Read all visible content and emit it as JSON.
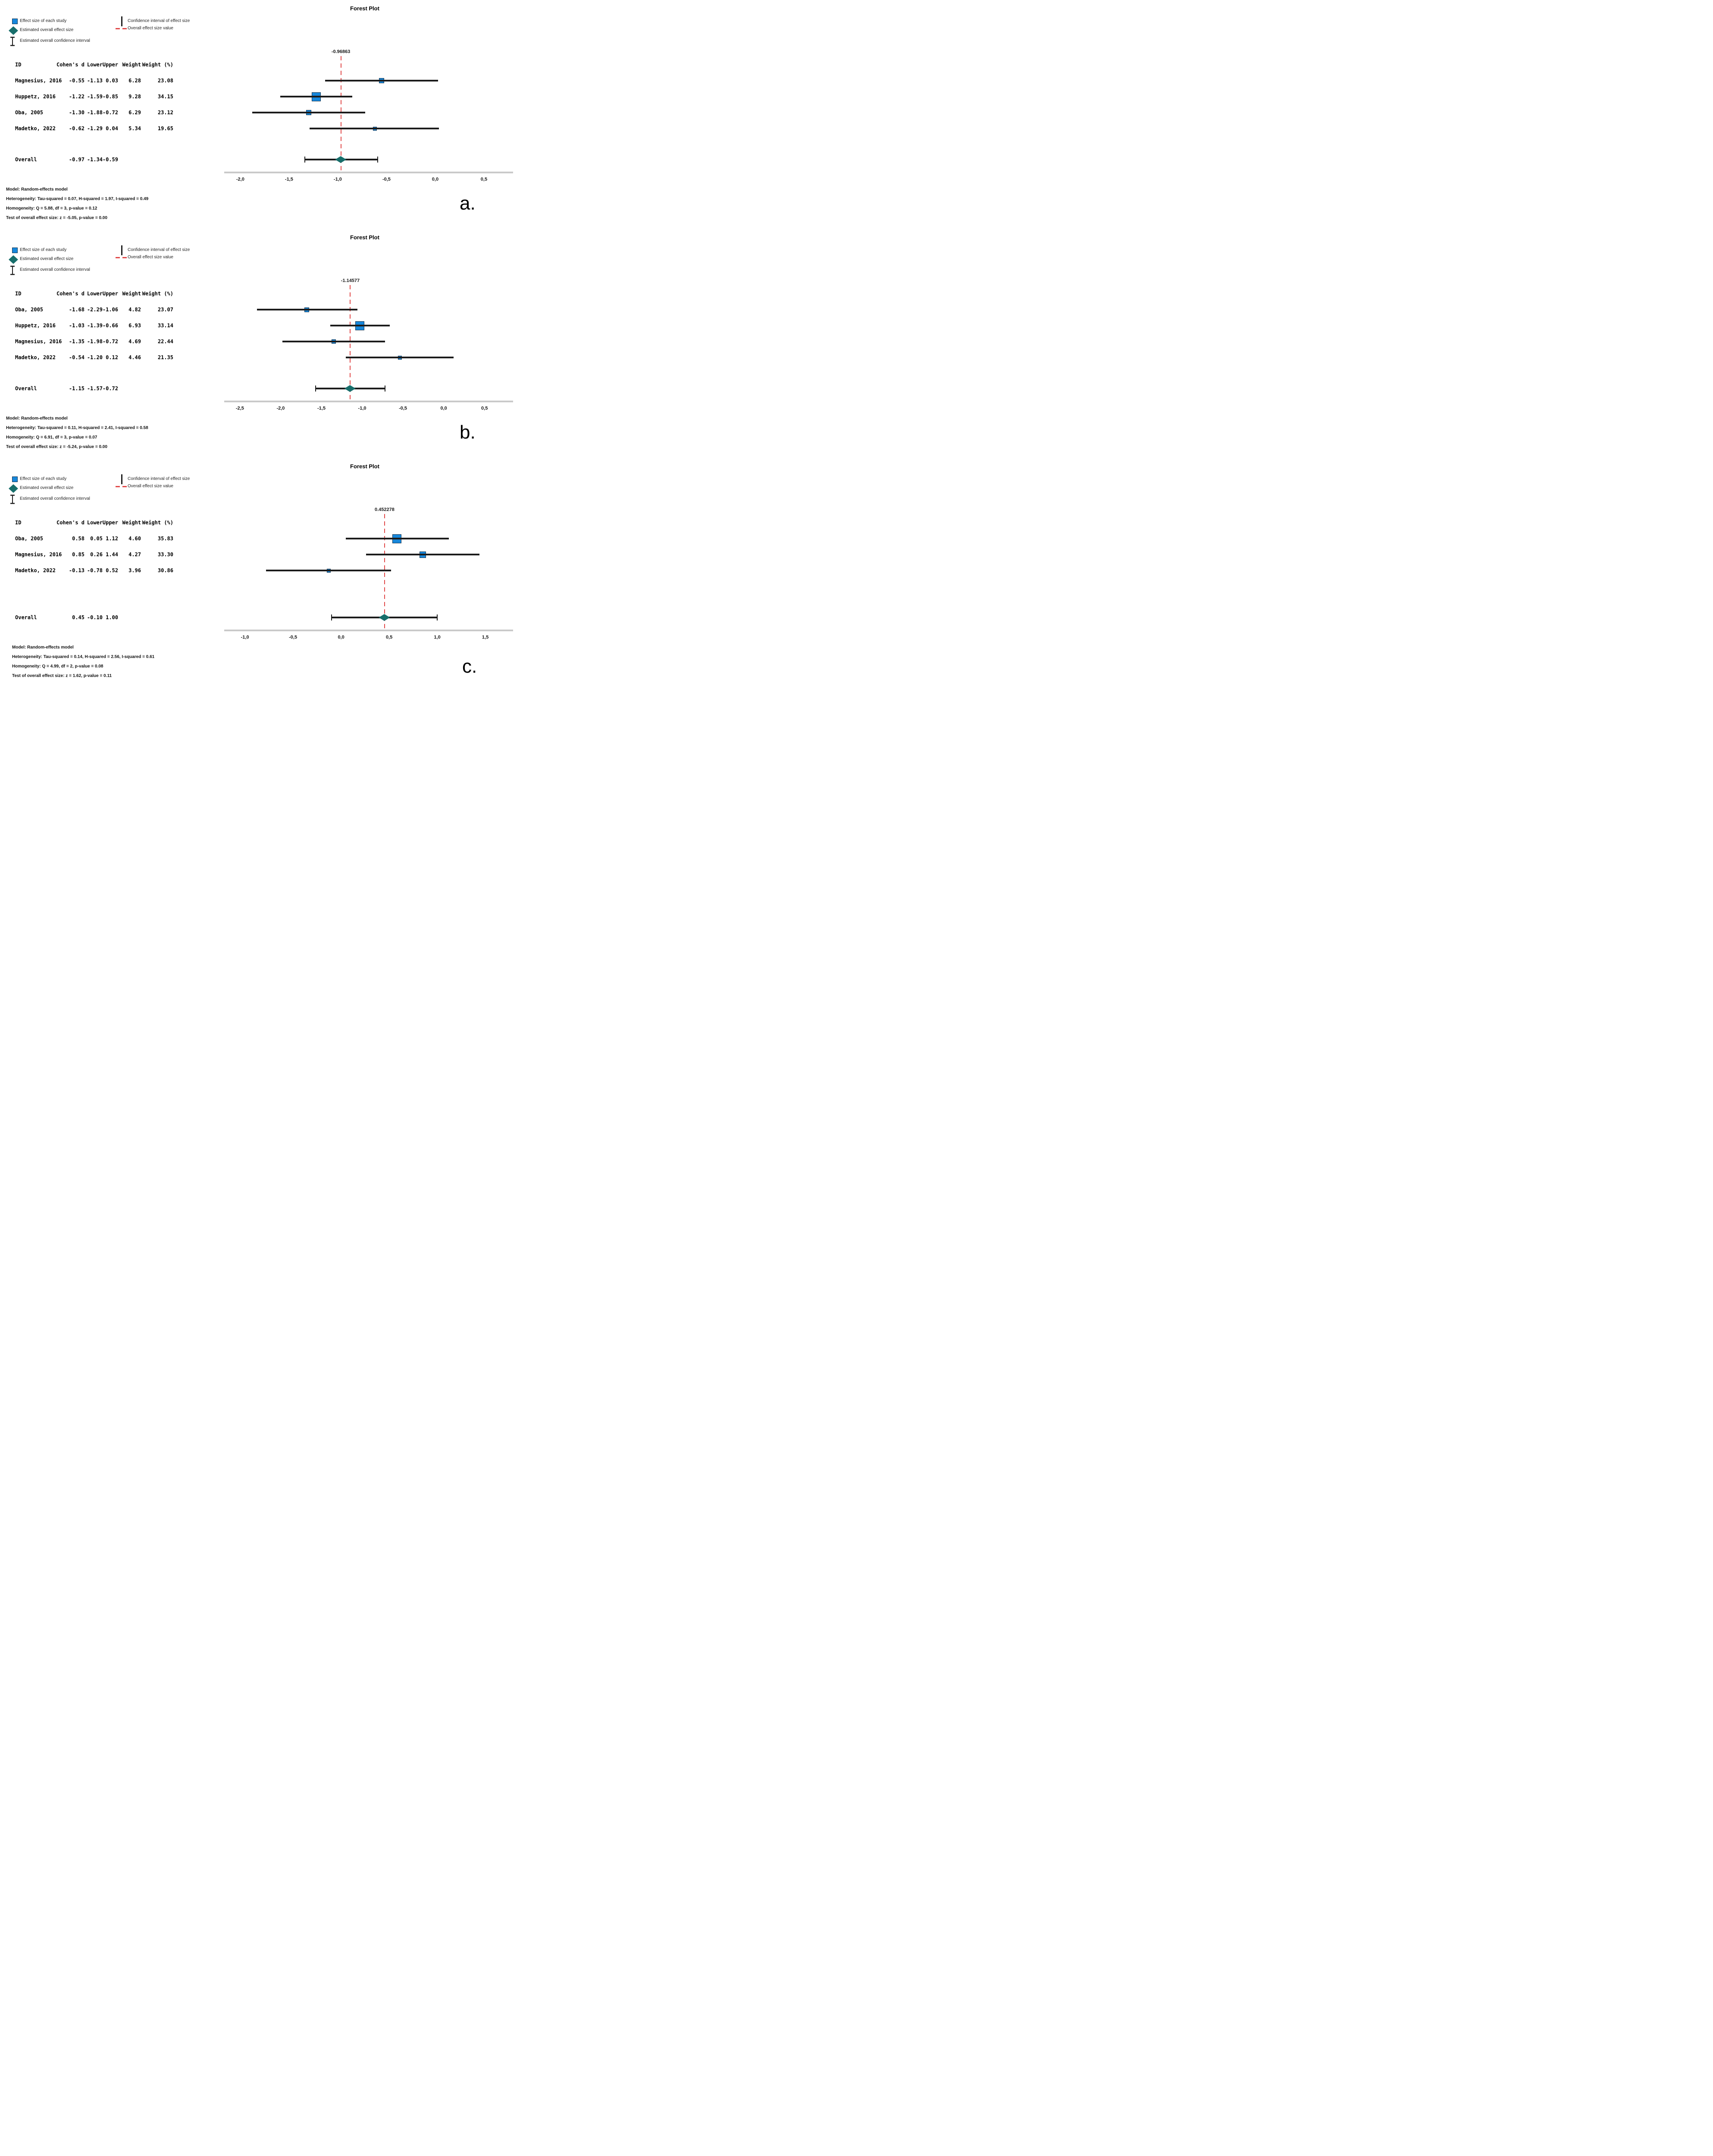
{
  "figure_title": "Forest Plot",
  "colors": {
    "study_marker_fill": "#1787DB",
    "study_marker_border": "#16324A",
    "overall_diamond": "#186E6B",
    "overall_value_line": "#E14A4A",
    "ci_line": "#1C1C1C",
    "axis_line": "#C9C9C9",
    "text": "#000000"
  },
  "legend": {
    "items_left": [
      {
        "icon": "effect-size-square-icon",
        "label": "Effect size of each study"
      },
      {
        "icon": "overall-diamond-icon",
        "label": "Estimated overall effect size"
      },
      {
        "icon": "overall-ci-ibeam-icon",
        "label": "Estimated overall confidence interval"
      }
    ],
    "items_right": [
      {
        "icon": "ci-vertical-line-icon",
        "label": "Confidence interval of effect size"
      },
      {
        "icon": "overall-value-dash-icon",
        "label": "Overall effect size value"
      }
    ]
  },
  "table_headers": [
    "ID",
    "Cohen's d",
    "Lower",
    "Upper",
    "Weight",
    "Weight (%)"
  ],
  "chart_data": [
    {
      "panel": "a.",
      "type": "forest",
      "title": "Forest Plot",
      "xlabel": "",
      "grid": false,
      "overall_effect_label": "-0.96863",
      "overall_effect_value": -0.96863,
      "xlim": [
        -2.13,
        0.79
      ],
      "ticks": [
        -2.0,
        -1.5,
        -1.0,
        -0.5,
        0.0,
        0.5
      ],
      "studies": [
        {
          "id": "Magnesius, 2016",
          "d": -0.55,
          "lower": -1.13,
          "upper": 0.03,
          "weight": 6.28,
          "weight_pct": 23.08
        },
        {
          "id": "Huppetz, 2016",
          "d": -1.22,
          "lower": -1.59,
          "upper": -0.85,
          "weight": 9.28,
          "weight_pct": 34.15
        },
        {
          "id": "Oba, 2005",
          "d": -1.3,
          "lower": -1.88,
          "upper": -0.72,
          "weight": 6.29,
          "weight_pct": 23.12
        },
        {
          "id": "Madetko, 2022",
          "d": -0.62,
          "lower": -1.29,
          "upper": 0.04,
          "weight": 5.34,
          "weight_pct": 19.65
        }
      ],
      "overall": {
        "id": "Overall",
        "d": -0.97,
        "lower": -1.34,
        "upper": -0.59
      },
      "stats": [
        "Model: Random-effects model",
        "Heterogeneity: Tau-squared = 0.07, H-squared = 1.97, I-squared = 0.49",
        "Homogeneity: Q = 5.88, df = 3, p-value = 0.12",
        "Test of overall effect size: z = -5.05, p-value = 0.00"
      ]
    },
    {
      "panel": "b.",
      "type": "forest",
      "title": "Forest Plot",
      "xlabel": "",
      "grid": false,
      "overall_effect_label": "-1.14577",
      "overall_effect_value": -1.14577,
      "xlim": [
        -2.65,
        0.84
      ],
      "ticks": [
        -2.5,
        -2.0,
        -1.5,
        -1.0,
        -0.5,
        0.0,
        0.5
      ],
      "studies": [
        {
          "id": "Oba, 2005",
          "d": -1.68,
          "lower": -2.29,
          "upper": -1.06,
          "weight": 4.82,
          "weight_pct": 23.07
        },
        {
          "id": "Huppetz, 2016",
          "d": -1.03,
          "lower": -1.39,
          "upper": -0.66,
          "weight": 6.93,
          "weight_pct": 33.14
        },
        {
          "id": "Magnesius, 2016",
          "d": -1.35,
          "lower": -1.98,
          "upper": -0.72,
          "weight": 4.69,
          "weight_pct": 22.44
        },
        {
          "id": "Madetko, 2022",
          "d": -0.54,
          "lower": -1.2,
          "upper": 0.12,
          "weight": 4.46,
          "weight_pct": 21.35
        }
      ],
      "overall": {
        "id": "Overall",
        "d": -1.15,
        "lower": -1.57,
        "upper": -0.72
      },
      "stats": [
        "Model: Random-effects model",
        "Heterogeneity: Tau-squared = 0.11, H-squared = 2.41, I-squared = 0.58",
        "Homogeneity: Q = 6.91, df = 3, p-value = 0.07",
        "Test of overall effect size: z = -5.24, p-value = 0.00"
      ]
    },
    {
      "panel": "c.",
      "type": "forest",
      "title": "Forest Plot",
      "xlabel": "",
      "grid": false,
      "overall_effect_label": "0.452278",
      "overall_effect_value": 0.452278,
      "xlim": [
        -1.18,
        1.78
      ],
      "ticks": [
        -1.0,
        -0.5,
        0.0,
        0.5,
        1.0,
        1.5
      ],
      "studies": [
        {
          "id": "Oba, 2005",
          "d": 0.58,
          "lower": 0.05,
          "upper": 1.12,
          "weight": 4.6,
          "weight_pct": 35.83
        },
        {
          "id": "Magnesius, 2016",
          "d": 0.85,
          "lower": 0.26,
          "upper": 1.44,
          "weight": 4.27,
          "weight_pct": 33.3
        },
        {
          "id": "Madetko, 2022",
          "d": -0.13,
          "lower": -0.78,
          "upper": 0.52,
          "weight": 3.96,
          "weight_pct": 30.86
        }
      ],
      "overall": {
        "id": "Overall",
        "d": 0.45,
        "lower": -0.1,
        "upper": 1.0
      },
      "stats": [
        "Model: Random-effects model",
        "Heterogeneity: Tau-squared = 0.14, H-squared = 2.56, I-squared = 0.61",
        "Homogeneity: Q = 4.99, df = 2, p-value = 0.08",
        "Test of overall effect size: z = 1.62, p-value = 0.11"
      ]
    }
  ]
}
